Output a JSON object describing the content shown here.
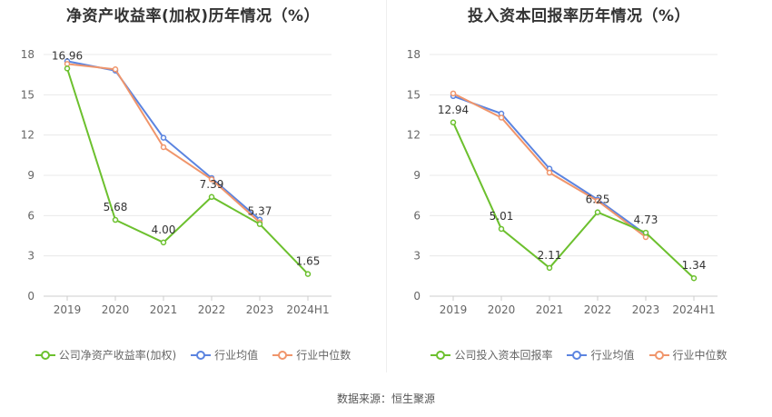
{
  "charts": [
    {
      "title": "净资产收益率(加权)历年情况（%）",
      "legend": [
        "公司净资产收益率(加权)",
        "行业均值",
        "行业中位数"
      ]
    },
    {
      "title": "投入资本回报率历年情况（%）",
      "legend": [
        "公司投入资本回报率",
        "行业均值",
        "行业中位数"
      ]
    }
  ],
  "source": "数据来源：恒生聚源",
  "colors": {
    "company": "#6cc02e",
    "mean": "#5b84e0",
    "median": "#f0956b",
    "axis": "#999999",
    "grid": "#e8e8e8"
  },
  "chart_data": [
    {
      "type": "line",
      "title": "净资产收益率(加权)历年情况（%）",
      "categories": [
        "2019",
        "2020",
        "2021",
        "2022",
        "2023",
        "2024H1"
      ],
      "ylim": [
        0,
        18
      ],
      "yticks": [
        0,
        3,
        6,
        9,
        12,
        15,
        18
      ],
      "series": [
        {
          "name": "公司净资产收益率(加权)",
          "values": [
            16.96,
            5.68,
            4.0,
            7.39,
            5.37,
            1.65
          ],
          "labels": [
            "16.96",
            "5.68",
            "4.00",
            "7.39",
            "5.37",
            "1.65"
          ]
        },
        {
          "name": "行业均值",
          "values": [
            17.5,
            16.8,
            11.8,
            8.8,
            5.7,
            null
          ]
        },
        {
          "name": "行业中位数",
          "values": [
            17.3,
            16.9,
            11.1,
            8.7,
            5.5,
            null
          ]
        }
      ]
    },
    {
      "type": "line",
      "title": "投入资本回报率历年情况（%）",
      "categories": [
        "2019",
        "2020",
        "2021",
        "2022",
        "2023",
        "2024H1"
      ],
      "ylim": [
        0,
        18
      ],
      "yticks": [
        0,
        3,
        6,
        9,
        12,
        15,
        18
      ],
      "series": [
        {
          "name": "公司投入资本回报率",
          "values": [
            12.94,
            5.01,
            2.11,
            6.25,
            4.73,
            1.34
          ],
          "labels": [
            "12.94",
            "5.01",
            "2.11",
            "6.25",
            "4.73",
            "1.34"
          ]
        },
        {
          "name": "行业均值",
          "values": [
            14.9,
            13.6,
            9.5,
            7.2,
            4.6,
            null
          ]
        },
        {
          "name": "行业中位数",
          "values": [
            15.1,
            13.3,
            9.2,
            7.1,
            4.4,
            null
          ]
        }
      ]
    }
  ]
}
